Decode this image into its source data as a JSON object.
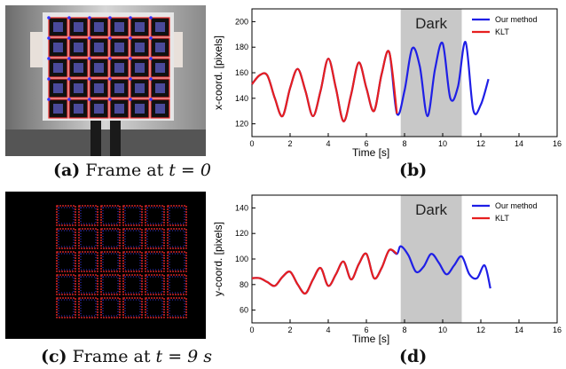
{
  "figure": {
    "captions": {
      "a": {
        "label": "(a)",
        "text": "Frame at",
        "math": "t = 0"
      },
      "b": {
        "label": "(b)"
      },
      "c": {
        "label": "(c)",
        "text": "Frame at",
        "math": "t = 9 s"
      },
      "d": {
        "label": "(d)"
      }
    },
    "images": {
      "a": {
        "subject": "person-holding-checkerboard-target",
        "icon": "checkerboard-photo-icon"
      },
      "c": {
        "subject": "event-camera-frame-checkerboard",
        "icon": "event-frame-icon"
      }
    }
  },
  "chart_data": [
    {
      "type": "line",
      "id": "b",
      "xlabel": "Time [s]",
      "ylabel": "x-coord. [pixels]",
      "xlim": [
        0,
        16
      ],
      "ylim": [
        110,
        210
      ],
      "xticks": [
        0,
        2,
        4,
        6,
        8,
        10,
        12,
        14,
        16
      ],
      "yticks": [
        120,
        140,
        160,
        180,
        200
      ],
      "grid": false,
      "legend": "top-right",
      "shaded_region": {
        "x": [
          7.8,
          11.0
        ],
        "label": "Dark",
        "color": "#c8c8c8"
      },
      "series": [
        {
          "name": "Our method",
          "color": "#1f1fe6",
          "x": [
            0,
            0.4,
            0.8,
            1.2,
            1.6,
            2.0,
            2.4,
            2.8,
            3.2,
            3.6,
            4.0,
            4.4,
            4.8,
            5.2,
            5.6,
            6.0,
            6.4,
            6.8,
            7.2,
            7.6,
            8.0,
            8.4,
            8.8,
            9.2,
            9.6,
            10.0,
            10.4,
            10.8,
            11.2,
            11.6,
            12.0,
            12.4
          ],
          "y": [
            151,
            158,
            158,
            140,
            126,
            148,
            163,
            146,
            126,
            146,
            171,
            148,
            122,
            143,
            168,
            148,
            130,
            159,
            176,
            128,
            146,
            179,
            165,
            126,
            163,
            183,
            140,
            149,
            184,
            131,
            135,
            155
          ]
        },
        {
          "name": "KLT",
          "color": "#e61f1f",
          "x": [
            0,
            0.4,
            0.8,
            1.2,
            1.6,
            2.0,
            2.4,
            2.8,
            3.2,
            3.6,
            4.0,
            4.4,
            4.8,
            5.2,
            5.6,
            6.0,
            6.4,
            6.8,
            7.2,
            7.6
          ],
          "y": [
            151,
            158,
            158,
            140,
            126,
            148,
            163,
            146,
            126,
            146,
            171,
            148,
            122,
            143,
            168,
            148,
            130,
            159,
            176,
            128
          ]
        }
      ]
    },
    {
      "type": "line",
      "id": "d",
      "xlabel": "Time [s]",
      "ylabel": "y-coord. [pixels]",
      "xlim": [
        0,
        16
      ],
      "ylim": [
        50,
        150
      ],
      "xticks": [
        0,
        2,
        4,
        6,
        8,
        10,
        12,
        14,
        16
      ],
      "yticks": [
        60,
        80,
        100,
        120,
        140
      ],
      "grid": false,
      "legend": "top-right",
      "shaded_region": {
        "x": [
          7.8,
          11.0
        ],
        "label": "Dark",
        "color": "#c8c8c8"
      },
      "series": [
        {
          "name": "Our method",
          "color": "#1f1fe6",
          "x": [
            0,
            0.4,
            0.8,
            1.2,
            1.6,
            2.0,
            2.4,
            2.8,
            3.2,
            3.6,
            4.0,
            4.4,
            4.8,
            5.2,
            5.6,
            6.0,
            6.4,
            6.8,
            7.2,
            7.6,
            7.8,
            8.2,
            8.6,
            9.0,
            9.4,
            9.8,
            10.2,
            10.6,
            11.0,
            11.4,
            11.8,
            12.2,
            12.5
          ],
          "y": [
            85,
            85,
            82,
            79,
            86,
            90,
            80,
            73,
            84,
            93,
            79,
            88,
            98,
            84,
            96,
            104,
            85,
            93,
            107,
            104,
            110,
            103,
            90,
            94,
            104,
            97,
            88,
            95,
            102,
            88,
            85,
            95,
            77
          ]
        },
        {
          "name": "KLT",
          "color": "#e61f1f",
          "x": [
            0,
            0.4,
            0.8,
            1.2,
            1.6,
            2.0,
            2.4,
            2.8,
            3.2,
            3.6,
            4.0,
            4.4,
            4.8,
            5.2,
            5.6,
            6.0,
            6.4,
            6.8,
            7.2,
            7.6
          ],
          "y": [
            85,
            85,
            82,
            79,
            86,
            90,
            80,
            73,
            84,
            93,
            79,
            88,
            98,
            84,
            96,
            104,
            85,
            93,
            107,
            104
          ]
        }
      ]
    }
  ]
}
